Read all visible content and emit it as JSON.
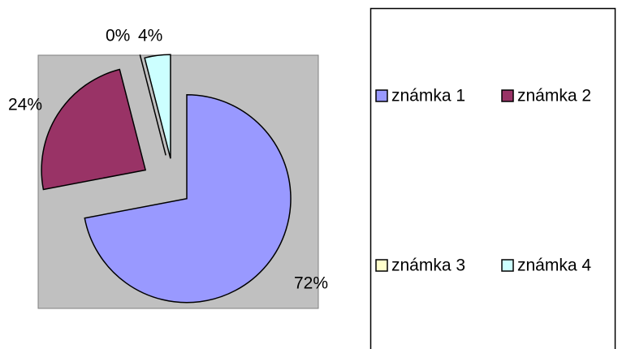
{
  "chart_data": {
    "type": "pie",
    "categories": [
      "známka 1",
      "známka 2",
      "známka 3",
      "známka 4"
    ],
    "values": [
      72,
      24,
      0,
      4
    ],
    "value_labels": [
      "72%",
      "24%",
      "0%",
      "4%"
    ],
    "colors": [
      "#9999ff",
      "#993366",
      "#ffffcc",
      "#ccffff"
    ],
    "legend": "right"
  }
}
